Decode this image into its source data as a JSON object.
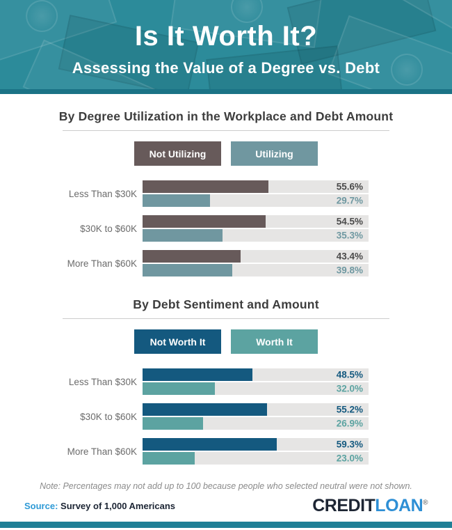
{
  "header": {
    "title": "Is It Worth It?",
    "subtitle": "Assessing the Value of a Degree vs. Debt",
    "background_color": "#2c8b9a",
    "accent_strip_color": "#1b7386"
  },
  "chart_data": [
    {
      "type": "bar",
      "orientation": "horizontal",
      "title": "By Degree Utilization in the Workplace and Debt Amount",
      "categories": [
        "Less Than $30K",
        "$30K to $60K",
        "More Than $60K"
      ],
      "series": [
        {
          "name": "Not Utilizing",
          "color": "#675a5a",
          "value_color": "#4a4a4a",
          "values": [
            55.6,
            54.5,
            43.4
          ]
        },
        {
          "name": "Utilizing",
          "color": "#7097a0",
          "value_color": "#6f98a1",
          "values": [
            29.7,
            35.3,
            39.8
          ]
        }
      ],
      "value_suffix": "%",
      "xlim": [
        0,
        100
      ],
      "track_color": "#e6e5e4",
      "legend_position": "top",
      "grid": false
    },
    {
      "type": "bar",
      "orientation": "horizontal",
      "title": "By Debt Sentiment and Amount",
      "categories": [
        "Less Than $30K",
        "$30K to $60K",
        "More Than $60K"
      ],
      "series": [
        {
          "name": "Not Worth It",
          "color": "#14597f",
          "value_color": "#14597f",
          "values": [
            48.5,
            55.2,
            59.3
          ]
        },
        {
          "name": "Worth It",
          "color": "#5ca3a1",
          "value_color": "#5ca3a1",
          "values": [
            32.0,
            26.9,
            23.0
          ]
        }
      ],
      "value_suffix": "%",
      "xlim": [
        0,
        100
      ],
      "track_color": "#e6e5e4",
      "legend_position": "top",
      "grid": false
    }
  ],
  "note": "Note: Percentages may not add up to 100 because people who selected neutral were not shown.",
  "footer": {
    "source_label": "Source:",
    "source_text": "Survey of 1,000 Americans",
    "logo_part1": "CREDIT",
    "logo_part2": "LOAN",
    "logo_registered": "®",
    "bottom_bar_color": "#1f7f96"
  }
}
